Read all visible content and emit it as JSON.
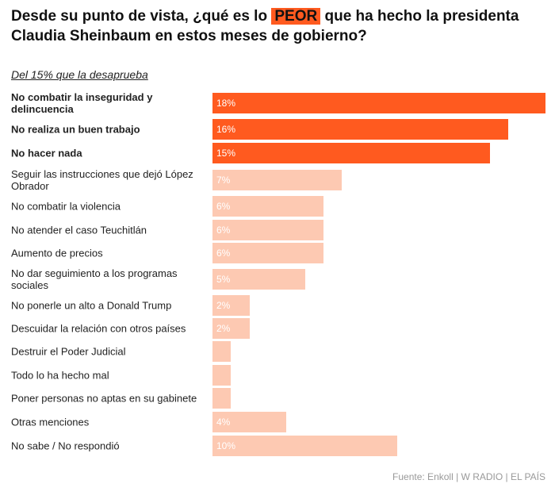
{
  "chart_data": {
    "type": "bar",
    "orientation": "horizontal",
    "title": [
      "Desde su punto de vista, ¿qué es lo",
      "PEOR",
      "que ha hecho la presidenta Claudia Sheinbaum en estos meses de gobierno?"
    ],
    "subtitle": "Del 15% que la desaprueba",
    "source": "Fuente: Enkoll | W RADIO | EL PAÍS",
    "categories": [
      "No combatir la inseguridad y delincuencia",
      "No realiza un buen trabajo",
      "No hacer nada",
      "Seguir las instrucciones que dejó López Obrador",
      "No combatir la violencia",
      "No atender el caso Teuchitlán",
      "Aumento de precios",
      "No dar seguimiento a los programas sociales",
      "No ponerle un alto a Donald Trump",
      "Descuidar la relación con otros países",
      "Destruir el Poder Judicial",
      "Todo lo ha hecho mal",
      "Poner personas no aptas en su gabinete",
      "Otras menciones",
      "No sabe / No respondió"
    ],
    "values": [
      18,
      16,
      15,
      7,
      6,
      6,
      6,
      5,
      2,
      2,
      1,
      1,
      1,
      4,
      10
    ],
    "value_labels": [
      "18%",
      "16%",
      "15%",
      "7%",
      "6%",
      "6%",
      "6%",
      "5%",
      "2%",
      "2%",
      null,
      null,
      null,
      "4%",
      "10%"
    ],
    "highlight": [
      true,
      true,
      true,
      false,
      false,
      false,
      false,
      false,
      false,
      false,
      false,
      false,
      false,
      false,
      false
    ],
    "highlight_color": "#ff5a1f",
    "color": "#fdc9b2",
    "xlim": [
      0,
      18
    ]
  }
}
